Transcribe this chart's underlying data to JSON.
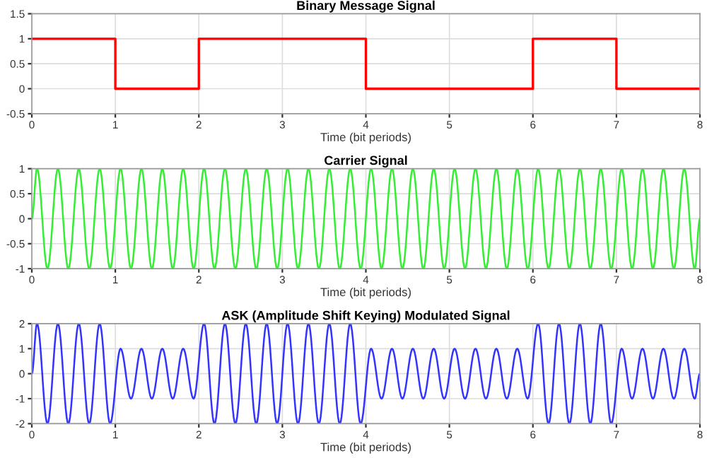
{
  "chart_data": [
    {
      "type": "step",
      "title": "Binary Message Signal",
      "xlabel": "Time (bit periods)",
      "color": "#ff0000",
      "x": [
        0,
        1,
        2,
        3,
        4,
        5,
        6,
        7,
        8
      ],
      "values": [
        1,
        0,
        1,
        1,
        0,
        0,
        1,
        0,
        0
      ],
      "xlim": [
        0,
        8
      ],
      "xticks": [
        0,
        1,
        2,
        3,
        4,
        5,
        6,
        7,
        8
      ],
      "ylim": [
        -0.5,
        1.5
      ],
      "yticks": [
        -0.5,
        0,
        0.5,
        1,
        1.5
      ],
      "grid": true
    },
    {
      "type": "line",
      "title": "Carrier Signal",
      "xlabel": "Time (bit periods)",
      "color": "#33ee33",
      "x": [
        0,
        0.0625,
        0.1875,
        0.3125,
        0.4375,
        0.5625,
        0.6875,
        0.8125,
        0.9375,
        1.0625,
        1.1875,
        1.3125,
        1.4375,
        1.5625,
        1.6875,
        1.8125,
        1.9375,
        2.0625,
        2.1875,
        2.3125,
        2.4375,
        2.5625,
        2.6875,
        2.8125,
        2.9375,
        3.0625,
        3.1875,
        3.3125,
        3.4375,
        3.5625,
        3.6875,
        3.8125,
        3.9375,
        4.0625,
        4.1875,
        4.3125,
        4.4375,
        4.5625,
        4.6875,
        4.8125,
        4.9375,
        5.0625,
        5.1875,
        5.3125,
        5.4375,
        5.5625,
        5.6875,
        5.8125,
        5.9375,
        6.0625,
        6.1875,
        6.3125,
        6.4375,
        6.5625,
        6.6875,
        6.8125,
        6.9375,
        7.0625,
        7.1875,
        7.3125,
        7.4375,
        7.5625,
        7.6875,
        7.8125,
        7.9375,
        8
      ],
      "values": [
        0,
        1,
        -1,
        1,
        -1,
        1,
        -1,
        1,
        -1,
        1,
        -1,
        1,
        -1,
        1,
        -1,
        1,
        -1,
        1,
        -1,
        1,
        -1,
        1,
        -1,
        1,
        -1,
        1,
        -1,
        1,
        -1,
        1,
        -1,
        1,
        -1,
        1,
        -1,
        1,
        -1,
        1,
        -1,
        1,
        -1,
        1,
        -1,
        1,
        -1,
        1,
        -1,
        1,
        -1,
        1,
        -1,
        1,
        -1,
        1,
        -1,
        1,
        -1,
        1,
        -1,
        1,
        -1,
        1,
        -1,
        1,
        -1,
        0
      ],
      "xlim": [
        0,
        8
      ],
      "xticks": [
        0,
        1,
        2,
        3,
        4,
        5,
        6,
        7,
        8
      ],
      "ylim": [
        -1,
        1
      ],
      "yticks": [
        -1,
        -0.5,
        0,
        0.5,
        1
      ],
      "grid": true
    },
    {
      "type": "line",
      "title": "ASK (Amplitude Shift Keying) Modulated Signal",
      "xlabel": "Time (bit periods)",
      "color": "#3333ff",
      "x": [
        0,
        0.0625,
        0.1875,
        0.3125,
        0.4375,
        0.5625,
        0.6875,
        0.8125,
        0.9375,
        1.0625,
        1.1875,
        1.3125,
        1.4375,
        1.5625,
        1.6875,
        1.8125,
        1.9375,
        2.0625,
        2.1875,
        2.3125,
        2.4375,
        2.5625,
        2.6875,
        2.8125,
        2.9375,
        3.0625,
        3.1875,
        3.3125,
        3.4375,
        3.5625,
        3.6875,
        3.8125,
        3.9375,
        4.0625,
        4.1875,
        4.3125,
        4.4375,
        4.5625,
        4.6875,
        4.8125,
        4.9375,
        5.0625,
        5.1875,
        5.3125,
        5.4375,
        5.5625,
        5.6875,
        5.8125,
        5.9375,
        6.0625,
        6.1875,
        6.3125,
        6.4375,
        6.5625,
        6.6875,
        6.8125,
        6.9375,
        7.0625,
        7.1875,
        7.3125,
        7.4375,
        7.5625,
        7.6875,
        7.8125,
        7.9375,
        8
      ],
      "values": [
        0,
        2,
        -2,
        2,
        -2,
        2,
        -2,
        2,
        -2,
        1,
        -1,
        1,
        -1,
        1,
        -1,
        1,
        -1,
        2,
        -2,
        2,
        -2,
        2,
        -2,
        2,
        -2,
        2,
        -2,
        2,
        -2,
        2,
        -2,
        2,
        -2,
        1,
        -1,
        1,
        -1,
        1,
        -1,
        1,
        -1,
        1,
        -1,
        1,
        -1,
        1,
        -1,
        1,
        -1,
        2,
        -2,
        2,
        -2,
        2,
        -2,
        2,
        -2,
        1,
        -1,
        1,
        -1,
        1,
        -1,
        1,
        -1,
        0
      ],
      "xlim": [
        0,
        8
      ],
      "xticks": [
        0,
        1,
        2,
        3,
        4,
        5,
        6,
        7,
        8
      ],
      "ylim": [
        -2,
        2
      ],
      "yticks": [
        -2,
        -1,
        0,
        1,
        2
      ],
      "grid": true
    }
  ]
}
